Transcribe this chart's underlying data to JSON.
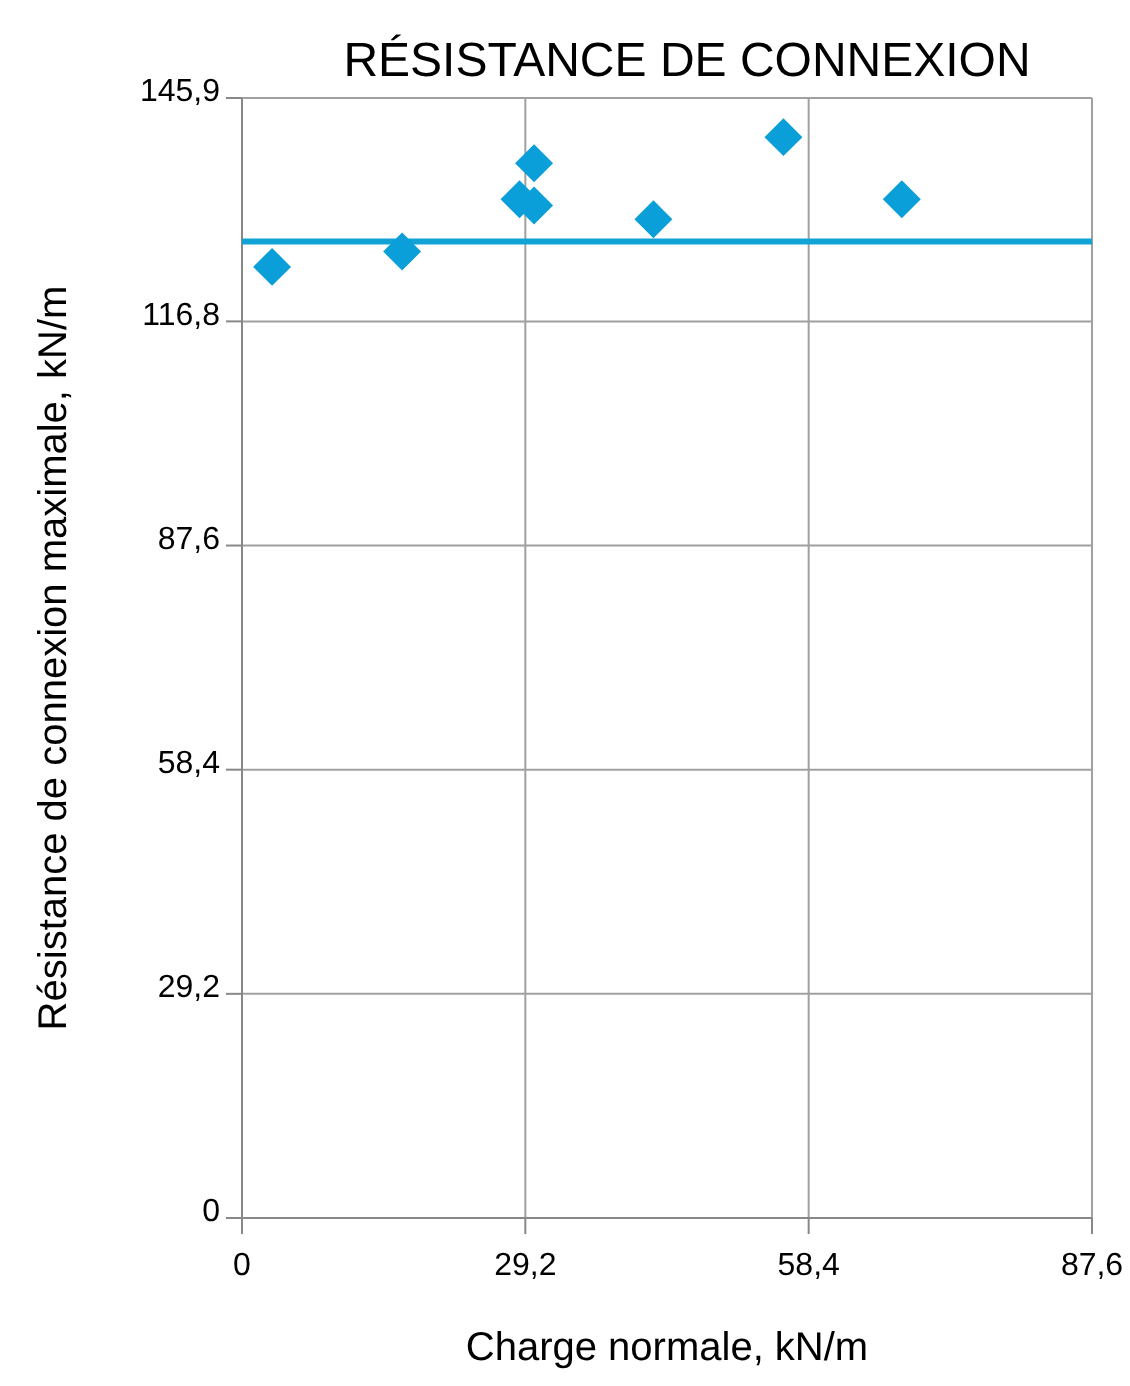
{
  "chart_data": {
    "type": "scatter",
    "title": "RÉSISTANCE DE CONNEXION",
    "xlabel": "Charge normale, kN/m",
    "ylabel": "Résistance de connexion maximale, kN/m",
    "x": [
      3.1,
      16.5,
      28.6,
      30.1,
      30.1,
      42.4,
      55.8,
      68.0
    ],
    "values": [
      123.9,
      125.9,
      132.7,
      137.4,
      131.9,
      130.1,
      140.8,
      132.7
    ],
    "color": "#0a9fd8",
    "marker": "diamond",
    "xlim": [
      0,
      87.6
    ],
    "xticks": [
      {
        "value": 0,
        "label": "0"
      },
      {
        "value": 29.2,
        "label": "29,2"
      },
      {
        "value": 58.4,
        "label": "58,4"
      },
      {
        "value": 87.6,
        "label": "87,6"
      }
    ],
    "ylim": [
      0,
      145.9
    ],
    "yticks": [
      {
        "value": 0,
        "label": "0"
      },
      {
        "value": 29.2,
        "label": "29,2"
      },
      {
        "value": 58.4,
        "label": "58,4"
      },
      {
        "value": 87.6,
        "label": "87,6"
      },
      {
        "value": 116.8,
        "label": "116,8"
      },
      {
        "value": 145.9,
        "label": "145,9"
      }
    ],
    "grid": true,
    "ref_lines": [
      {
        "axis": "y",
        "value": 127.2,
        "color": "#12a3d6"
      }
    ]
  }
}
